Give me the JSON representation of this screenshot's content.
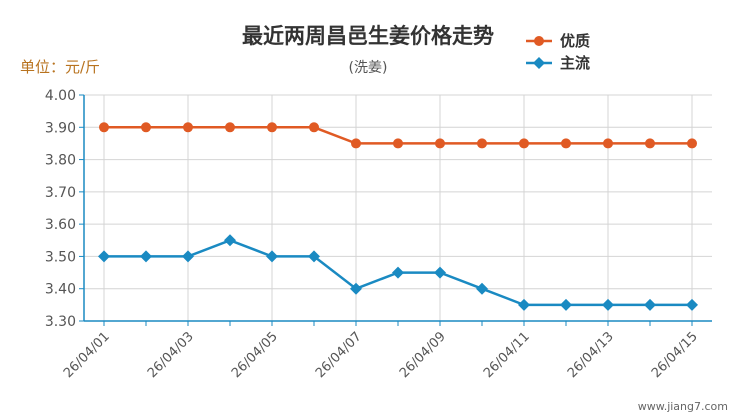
{
  "chart_data": {
    "type": "line",
    "title": "最近两周昌邑生姜价格走势",
    "subtitle": "(洗姜)",
    "unit_label": "单位：元/斤",
    "ylim": [
      3.3,
      4.0
    ],
    "yticks": [
      "4.00",
      "3.90",
      "3.80",
      "3.70",
      "3.60",
      "3.50",
      "3.40",
      "3.30"
    ],
    "x": [
      "26/04/01",
      "26/04/02",
      "26/04/03",
      "26/04/04",
      "26/04/05",
      "26/04/06",
      "26/04/07",
      "26/04/08",
      "26/04/09",
      "26/04/10",
      "26/04/11",
      "26/04/12",
      "26/04/13",
      "26/04/14",
      "26/04/15"
    ],
    "xtick_labels": [
      "26/04/01",
      "",
      "26/04/03",
      "",
      "26/04/05",
      "",
      "26/04/07",
      "",
      "26/04/09",
      "",
      "26/04/11",
      "",
      "26/04/13",
      "",
      "26/04/15"
    ],
    "grid": true,
    "legend_position": "top-right",
    "series": [
      {
        "name": "优质",
        "color": "#e05a24",
        "marker": "circle",
        "values": [
          3.9,
          3.9,
          3.9,
          3.9,
          3.9,
          3.9,
          3.85,
          3.85,
          3.85,
          3.85,
          3.85,
          3.85,
          3.85,
          3.85,
          3.85
        ]
      },
      {
        "name": "主流",
        "color": "#1a8ac2",
        "marker": "diamond",
        "values": [
          3.5,
          3.5,
          3.5,
          3.55,
          3.5,
          3.5,
          3.4,
          3.45,
          3.45,
          3.4,
          3.35,
          3.35,
          3.35,
          3.35,
          3.35
        ]
      }
    ]
  },
  "watermark": "www.jiang7.com"
}
